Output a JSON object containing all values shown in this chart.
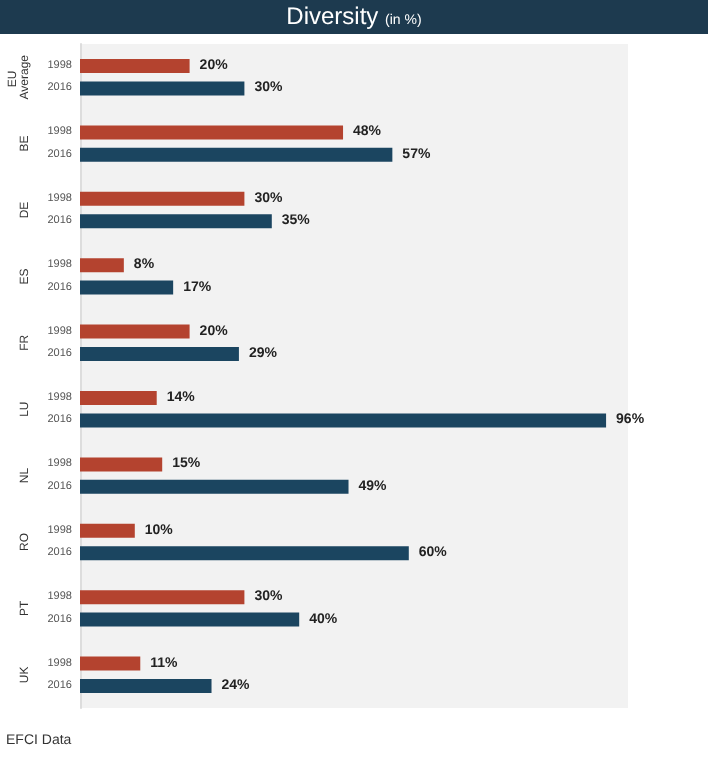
{
  "chart_data": {
    "type": "bar",
    "orientation": "horizontal",
    "title": "Diversity",
    "subtitle": "(in %)",
    "categories": [
      "EU Average",
      "BE",
      "DE",
      "ES",
      "FR",
      "LU",
      "NL",
      "RO",
      "PT",
      "UK"
    ],
    "series": [
      {
        "name": "1998",
        "color": "#b4432f",
        "values": [
          20,
          48,
          30,
          8,
          20,
          14,
          15,
          10,
          30,
          11
        ],
        "value_labels": [
          "20%",
          "48%",
          "30%",
          "8%",
          "20%",
          "14%",
          "15%",
          "10%",
          "30%",
          "11%"
        ]
      },
      {
        "name": "2016",
        "color": "#1b4560",
        "values": [
          30,
          57,
          35,
          17,
          29,
          96,
          49,
          60,
          40,
          24
        ],
        "value_labels": [
          "30%",
          "57%",
          "35%",
          "17%",
          "29%",
          "96%",
          "49%",
          "60%",
          "40%",
          "24%"
        ]
      }
    ],
    "legend": false,
    "grid": false,
    "annotations": [
      "EFCI Data"
    ]
  }
}
